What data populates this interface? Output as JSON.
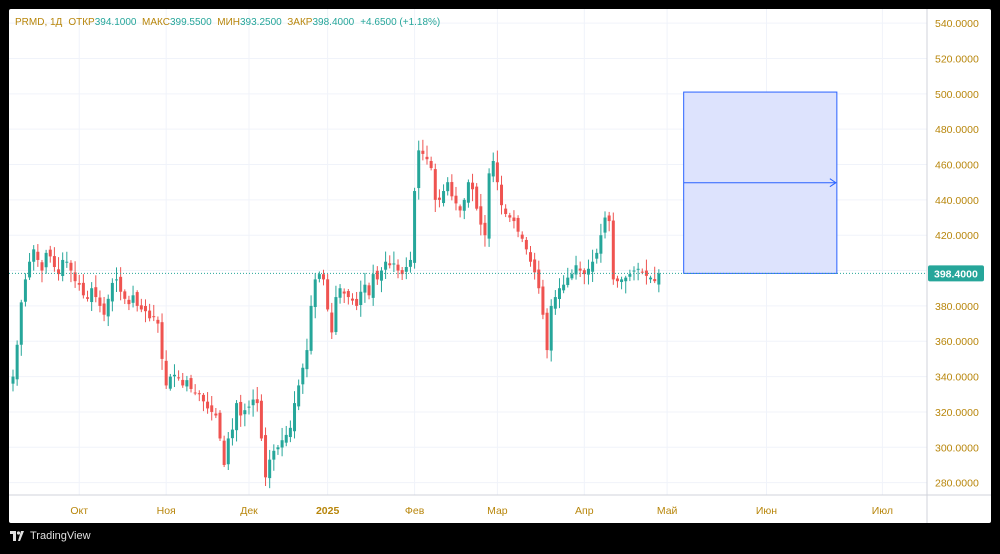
{
  "legend": {
    "symbol": "PRMD, 1Д",
    "open_label": "ОТКР",
    "open_value": "394.1000",
    "high_label": "МАКС",
    "high_value": "399.5500",
    "low_label": "МИН",
    "low_value": "393.2500",
    "close_label": "ЗАКР",
    "close_value": "398.4000",
    "change": "+4.6500 (+1.18%)"
  },
  "footer": {
    "brand": "TradingView"
  },
  "colors": {
    "up": "#26a69a",
    "down": "#ef5350",
    "price_label_bg": "#26a69a",
    "forecast_fill": "#dde3fd",
    "forecast_line": "#2962ff",
    "grid": "#f0f3fa",
    "axis_text": "#b8860b"
  },
  "chart_data": {
    "type": "candlestick",
    "symbol": "PRMD",
    "interval": "1D",
    "last_price": "398.4000",
    "y_ticks": [
      "540.0000",
      "520.0000",
      "500.0000",
      "480.0000",
      "460.0000",
      "440.0000",
      "420.0000",
      "400.0000",
      "380.0000",
      "360.0000",
      "340.0000",
      "320.0000",
      "300.0000",
      "280.0000"
    ],
    "y_tick_values": [
      540,
      520,
      500,
      480,
      460,
      440,
      420,
      400,
      380,
      360,
      340,
      320,
      300,
      280
    ],
    "ylim": [
      273,
      548
    ],
    "x_ticks": [
      "Окт",
      "Ноя",
      "Дек",
      "2025",
      "Фев",
      "Мар",
      "Апр",
      "Май",
      "Июн",
      "Июл"
    ],
    "x_tick_bar_index": [
      16,
      37,
      57,
      76,
      97,
      117,
      138,
      158,
      182,
      210
    ],
    "forecast_box": {
      "price_top": 501,
      "price_bottom": 398.4,
      "bars_ahead_start": 6,
      "bars_ahead_end": 43
    },
    "closes": [
      340,
      358,
      382,
      395,
      405,
      412,
      406,
      400,
      410,
      408,
      402,
      398,
      406,
      405,
      400,
      394,
      392,
      386,
      384,
      390,
      385,
      380,
      375,
      384,
      393,
      395,
      388,
      384,
      381,
      386,
      380,
      378,
      377,
      373,
      374,
      370,
      350,
      335,
      340,
      341,
      339,
      335,
      338,
      333,
      331,
      330,
      326,
      322,
      320,
      318,
      305,
      290,
      305,
      310,
      325,
      318,
      321,
      323,
      327,
      325,
      305,
      283,
      293,
      298,
      300,
      304,
      307,
      311,
      325,
      335,
      345,
      355,
      380,
      395,
      398,
      395,
      378,
      365,
      385,
      390,
      387,
      385,
      383,
      380,
      388,
      392,
      386,
      398,
      395,
      400,
      405,
      403,
      404,
      400,
      398,
      402,
      406,
      445,
      468,
      466,
      463,
      458,
      440,
      440,
      445,
      450,
      442,
      438,
      434,
      440,
      450,
      446,
      435,
      426,
      420,
      455,
      462,
      450,
      437,
      432,
      430,
      428,
      422,
      418,
      412,
      405,
      399,
      390,
      375,
      355,
      380,
      385,
      390,
      392,
      396,
      398,
      403,
      400,
      398,
      401,
      405,
      410,
      420,
      430,
      428,
      395,
      394,
      395,
      396,
      398,
      400,
      401,
      399,
      397,
      396,
      394,
      398.4
    ]
  }
}
